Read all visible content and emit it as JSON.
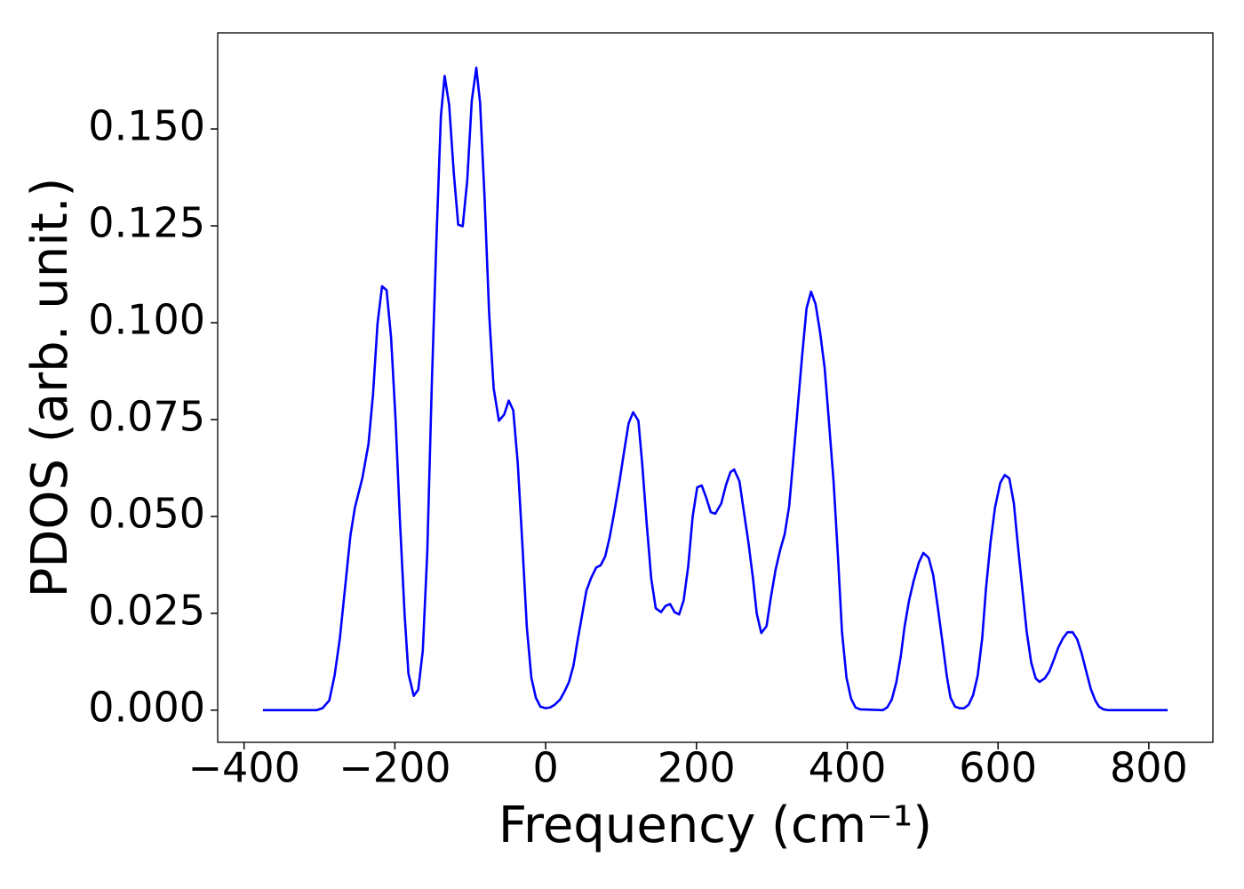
{
  "chart_data": {
    "type": "line",
    "xlabel": "Frequency (cm⁻¹)",
    "ylabel": "PDOS (arb. unit.)",
    "color": "#0000ff",
    "xlim": [
      -435,
      885
    ],
    "ylim": [
      -0.0083,
      0.1748
    ],
    "xticks": [
      {
        "value": -400,
        "label": "−400"
      },
      {
        "value": -200,
        "label": "−200"
      },
      0,
      200,
      400,
      600,
      800
    ],
    "yticks": [
      {
        "value": 0,
        "label": "0.000"
      },
      {
        "value": 0.025,
        "label": "0.025"
      },
      {
        "value": 0.05,
        "label": "0.050"
      },
      {
        "value": 0.075,
        "label": "0.075"
      },
      {
        "value": 0.1,
        "label": "0.100"
      },
      {
        "value": 0.125,
        "label": "0.125"
      },
      {
        "value": 0.15,
        "label": "0.150"
      }
    ],
    "x": [
      -375,
      -304,
      -296,
      -287,
      -280,
      -273,
      -266,
      -259,
      -253,
      -243,
      -235,
      -229,
      -223,
      -217,
      -211,
      -205,
      -199,
      -193,
      -187,
      -182,
      -175,
      -169,
      -163,
      -157,
      -151,
      -145,
      -139,
      -134,
      -128,
      -122,
      -116,
      -110,
      -104,
      -98,
      -92,
      -87,
      -81,
      -75,
      -69,
      -62,
      -55,
      -49,
      -43,
      -37,
      -31,
      -25,
      -19,
      -13,
      -7,
      0,
      6,
      12,
      19,
      25,
      31,
      37,
      42,
      48,
      54,
      60,
      67,
      73,
      79,
      85,
      91,
      98,
      104,
      110,
      116,
      123,
      128,
      134,
      140,
      146,
      153,
      159,
      165,
      171,
      177,
      183,
      189,
      195,
      201,
      207,
      213,
      219,
      225,
      233,
      239,
      245,
      250,
      257,
      263,
      269,
      275,
      280,
      286,
      293,
      299,
      305,
      311,
      317,
      323,
      328,
      334,
      340,
      346,
      352,
      358,
      364,
      370,
      375,
      382,
      388,
      393,
      399,
      405,
      411,
      417,
      447,
      453,
      459,
      465,
      471,
      476,
      482,
      488,
      495,
      501,
      508,
      514,
      520,
      526,
      532,
      537,
      543,
      549,
      555,
      561,
      567,
      573,
      579,
      584,
      590,
      596,
      603,
      609,
      615,
      621,
      626,
      632,
      638,
      644,
      650,
      655,
      662,
      668,
      674,
      680,
      686,
      692,
      699,
      705,
      711,
      717,
      723,
      729,
      734,
      740,
      746,
      825
    ],
    "values": [
      0,
      0,
      0.0005,
      0.0025,
      0.0089,
      0.0185,
      0.0317,
      0.045,
      0.0523,
      0.06,
      0.0687,
      0.0815,
      0.0998,
      0.1094,
      0.1084,
      0.0961,
      0.0747,
      0.0477,
      0.0244,
      0.0094,
      0.0037,
      0.0053,
      0.0153,
      0.0409,
      0.0842,
      0.1208,
      0.1532,
      0.1637,
      0.1562,
      0.139,
      0.1253,
      0.1249,
      0.1368,
      0.1573,
      0.1658,
      0.1568,
      0.1322,
      0.1025,
      0.0831,
      0.0747,
      0.0763,
      0.0799,
      0.0774,
      0.0637,
      0.0432,
      0.0215,
      0.0084,
      0.0032,
      0.0009,
      0.0005,
      0.0007,
      0.0014,
      0.0027,
      0.0048,
      0.0073,
      0.0116,
      0.0176,
      0.0242,
      0.0308,
      0.034,
      0.0368,
      0.0374,
      0.0397,
      0.0447,
      0.0511,
      0.0591,
      0.0667,
      0.074,
      0.0769,
      0.0747,
      0.0637,
      0.0482,
      0.034,
      0.0263,
      0.0253,
      0.0269,
      0.0274,
      0.0253,
      0.0247,
      0.0283,
      0.037,
      0.05,
      0.0575,
      0.058,
      0.0548,
      0.0511,
      0.0507,
      0.0534,
      0.058,
      0.0614,
      0.0621,
      0.0591,
      0.0511,
      0.0432,
      0.034,
      0.0249,
      0.0199,
      0.0217,
      0.0295,
      0.0363,
      0.0413,
      0.0454,
      0.0527,
      0.0637,
      0.0774,
      0.0911,
      0.1037,
      0.108,
      0.1048,
      0.0975,
      0.0884,
      0.0763,
      0.0587,
      0.0386,
      0.0203,
      0.0084,
      0.003,
      0.0007,
      0.0002,
      0,
      0.0007,
      0.0027,
      0.0071,
      0.0139,
      0.0215,
      0.0283,
      0.0333,
      0.0381,
      0.0406,
      0.0393,
      0.0349,
      0.0267,
      0.018,
      0.0089,
      0.0032,
      0.0009,
      0.0005,
      0.0005,
      0.0014,
      0.0039,
      0.0089,
      0.0185,
      0.0313,
      0.0432,
      0.0523,
      0.0587,
      0.0607,
      0.0598,
      0.0534,
      0.0432,
      0.0317,
      0.0203,
      0.0123,
      0.0082,
      0.0073,
      0.0082,
      0.01,
      0.013,
      0.0162,
      0.0185,
      0.0201,
      0.0201,
      0.0183,
      0.0146,
      0.01,
      0.0055,
      0.0025,
      0.0009,
      0.0002,
      0,
      0
    ]
  }
}
